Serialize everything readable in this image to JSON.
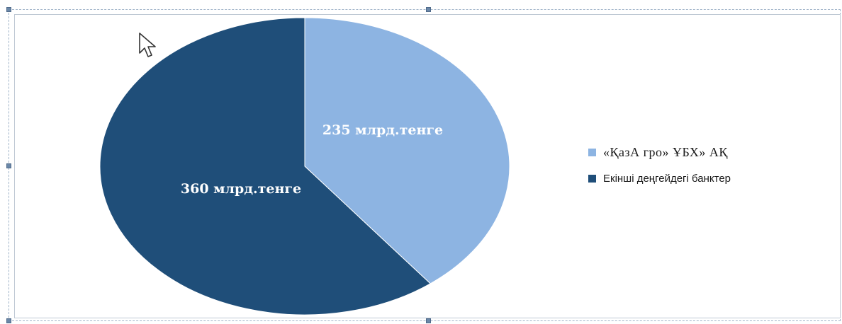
{
  "chart_data": {
    "type": "pie",
    "slices": [
      {
        "name": "«ҚазА гро» ҰБХ» АҚ",
        "value": 235,
        "label": "235 млрд.тенге",
        "color": "#8db4e2"
      },
      {
        "name": "Екінші деңгейдегі банктер",
        "value": 360,
        "label": "360 млрд.тенге",
        "color": "#1f4e79"
      }
    ],
    "start_angle": "12 o'clock",
    "direction": "clockwise",
    "legend_position": "right"
  },
  "icons": {
    "cursor": "mouse-pointer-icon"
  }
}
